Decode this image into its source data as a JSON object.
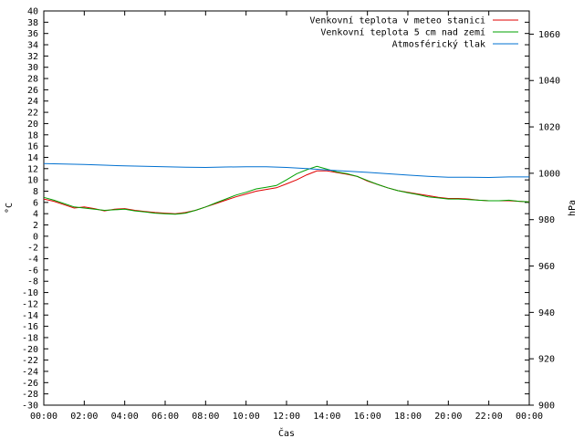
{
  "chart_data": {
    "type": "line",
    "title": "",
    "xlabel": "Čas",
    "ylabel": "°C",
    "y2label": "hPa",
    "xlim": [
      0,
      24
    ],
    "ylim": [
      -30,
      40
    ],
    "y2lim": [
      900,
      1070
    ],
    "grid": false,
    "legend": "top-right",
    "x_tick_labels": [
      "00:00",
      "02:00",
      "04:00",
      "06:00",
      "08:00",
      "10:00",
      "12:00",
      "14:00",
      "16:00",
      "18:00",
      "20:00",
      "22:00",
      "00:00"
    ],
    "y_ticks": [
      -30,
      -28,
      -26,
      -24,
      -22,
      -20,
      -18,
      -16,
      -14,
      -12,
      -10,
      -8,
      -6,
      -4,
      -2,
      0,
      2,
      4,
      6,
      8,
      10,
      12,
      14,
      16,
      18,
      20,
      22,
      24,
      26,
      28,
      30,
      32,
      34,
      36,
      38,
      40
    ],
    "y2_ticks": [
      900,
      920,
      940,
      960,
      980,
      1000,
      1020,
      1040,
      1060
    ],
    "series": [
      {
        "name": "Venkovní teplota v meteo stanici",
        "color": "#e00000",
        "axis": "y",
        "x": [
          0,
          0.5,
          1,
          1.5,
          2,
          2.5,
          3,
          3.5,
          4,
          4.5,
          5,
          5.5,
          6,
          6.5,
          7,
          7.5,
          8,
          8.5,
          9,
          9.5,
          10,
          10.5,
          11,
          11.5,
          12,
          12.5,
          13,
          13.5,
          14,
          14.5,
          15,
          15.5,
          16,
          16.5,
          17,
          17.5,
          18,
          18.5,
          19,
          19.5,
          20,
          20.5,
          21,
          21.5,
          22,
          22.5,
          23,
          23.5,
          24
        ],
        "values": [
          6.6,
          6.2,
          5.6,
          5.0,
          5.2,
          4.9,
          4.5,
          4.8,
          4.9,
          4.6,
          4.4,
          4.2,
          4.1,
          4.0,
          4.2,
          4.6,
          5.2,
          5.8,
          6.4,
          7.0,
          7.5,
          8.0,
          8.3,
          8.6,
          9.3,
          10.0,
          10.9,
          11.6,
          11.6,
          11.3,
          11.0,
          10.6,
          9.8,
          9.2,
          8.6,
          8.1,
          7.8,
          7.5,
          7.2,
          6.9,
          6.7,
          6.7,
          6.6,
          6.4,
          6.3,
          6.3,
          6.3,
          6.2,
          6.1
        ]
      },
      {
        "name": "Venkovní teplota 5 cm nad zemí",
        "color": "#00a000",
        "axis": "y",
        "x": [
          0,
          0.5,
          1,
          1.5,
          2,
          2.5,
          3,
          3.5,
          4,
          4.5,
          5,
          5.5,
          6,
          6.5,
          7,
          7.5,
          8,
          8.5,
          9,
          9.5,
          10,
          10.5,
          11,
          11.5,
          12,
          12.5,
          13,
          13.5,
          14,
          14.5,
          15,
          15.5,
          16,
          16.5,
          17,
          17.5,
          18,
          18.5,
          19,
          19.5,
          20,
          20.5,
          21,
          21.5,
          22,
          22.5,
          23,
          23.5,
          24
        ],
        "values": [
          6.9,
          6.4,
          5.8,
          5.2,
          5.0,
          4.8,
          4.6,
          4.7,
          4.8,
          4.5,
          4.3,
          4.1,
          4.0,
          3.9,
          4.1,
          4.6,
          5.2,
          5.9,
          6.6,
          7.3,
          7.8,
          8.4,
          8.7,
          9.0,
          10.0,
          11.1,
          11.8,
          12.4,
          11.9,
          11.4,
          11.1,
          10.6,
          9.9,
          9.2,
          8.6,
          8.1,
          7.7,
          7.4,
          7.0,
          6.8,
          6.6,
          6.6,
          6.5,
          6.4,
          6.3,
          6.3,
          6.4,
          6.2,
          6.1
        ]
      },
      {
        "name": "Atmosférický tlak",
        "color": "#0070d0",
        "axis": "y2",
        "x": [
          0,
          1,
          2,
          3,
          4,
          5,
          6,
          7,
          8,
          9,
          10,
          11,
          12,
          13,
          14,
          15,
          16,
          17,
          18,
          19,
          20,
          21,
          22,
          23,
          24
        ],
        "values": [
          1004.2,
          1004.0,
          1003.8,
          1003.5,
          1003.2,
          1003.0,
          1002.8,
          1002.6,
          1002.5,
          1002.7,
          1002.8,
          1002.8,
          1002.5,
          1002.0,
          1001.4,
          1000.9,
          1000.4,
          999.8,
          999.2,
          998.7,
          998.3,
          998.3,
          998.2,
          998.4,
          998.4
        ]
      }
    ]
  }
}
